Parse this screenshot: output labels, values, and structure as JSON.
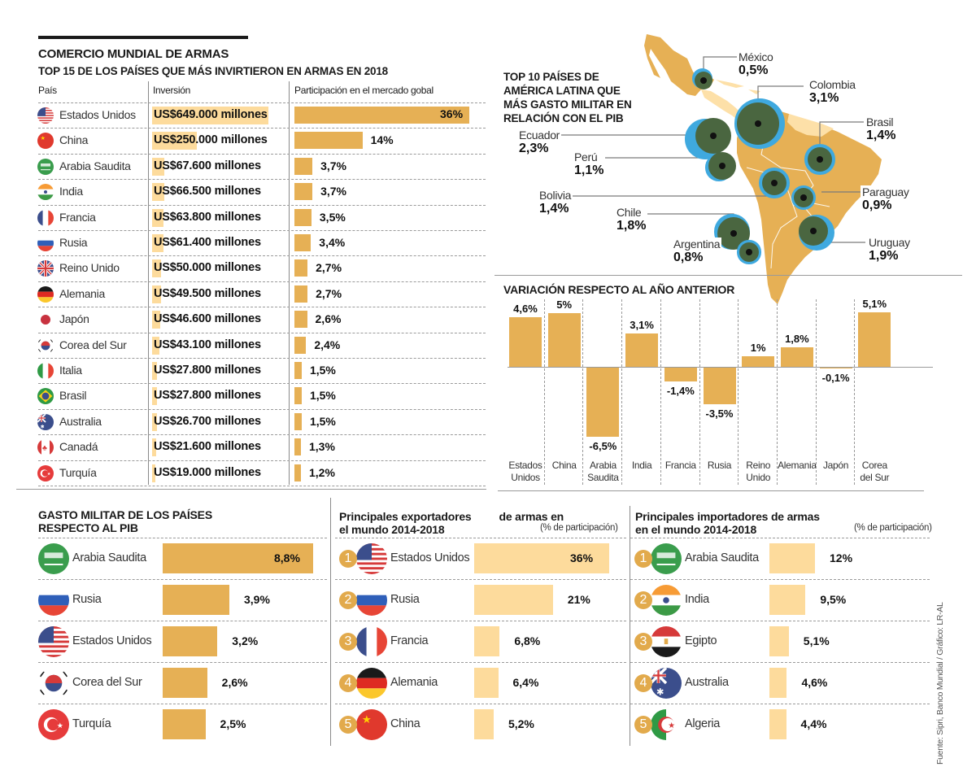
{
  "header": {
    "title": "COMERCIO MUNDIAL DE ARMAS",
    "subtitle": "TOP 15 DE LOS PAÍSES QUE MÁS INVIRTIERON EN ARMAS EN 2018",
    "col_country": "País",
    "col_investment": "Inversión",
    "col_share": "Participación en el mercado gobal"
  },
  "colors": {
    "bar_dark": "#e6b055",
    "bar_light": "#fddb9c",
    "map_land": "#e6b055",
    "map_land_light": "#fde0a8",
    "bubble_blue": "#3fa9df",
    "bubble_green": "#4a6640",
    "rank_badge": "#e2aa4c"
  },
  "top15": [
    {
      "country": "Estados Unidos",
      "flag": "usa-flag",
      "investment": "US$649.000 millones",
      "investment_musd": 649000,
      "share_pct": 36,
      "share_label": "36%"
    },
    {
      "country": "China",
      "flag": "china-flag",
      "investment": "US$250.000 millones",
      "investment_musd": 250000,
      "share_pct": 14,
      "share_label": "14%"
    },
    {
      "country": "Arabia Saudita",
      "flag": "saudi-flag",
      "investment": "US$67.600 millones",
      "investment_musd": 67600,
      "share_pct": 3.7,
      "share_label": "3,7%"
    },
    {
      "country": "India",
      "flag": "india-flag",
      "investment": "US$66.500 millones",
      "investment_musd": 66500,
      "share_pct": 3.7,
      "share_label": "3,7%"
    },
    {
      "country": "Francia",
      "flag": "france-flag",
      "investment": "US$63.800 millones",
      "investment_musd": 63800,
      "share_pct": 3.5,
      "share_label": "3,5%"
    },
    {
      "country": "Rusia",
      "flag": "russia-flag",
      "investment": "US$61.400 millones",
      "investment_musd": 61400,
      "share_pct": 3.4,
      "share_label": "3,4%"
    },
    {
      "country": "Reino Unido",
      "flag": "uk-flag",
      "investment": "US$50.000 millones",
      "investment_musd": 50000,
      "share_pct": 2.7,
      "share_label": "2,7%"
    },
    {
      "country": "Alemania",
      "flag": "germany-flag",
      "investment": "US$49.500 millones",
      "investment_musd": 49500,
      "share_pct": 2.7,
      "share_label": "2,7%"
    },
    {
      "country": "Japón",
      "flag": "japan-flag",
      "investment": "US$46.600 millones",
      "investment_musd": 46600,
      "share_pct": 2.6,
      "share_label": "2,6%"
    },
    {
      "country": "Corea del Sur",
      "flag": "korea-flag",
      "investment": "US$43.100 millones",
      "investment_musd": 43100,
      "share_pct": 2.4,
      "share_label": "2,4%"
    },
    {
      "country": "Italia",
      "flag": "italy-flag",
      "investment": "US$27.800 millones",
      "investment_musd": 27800,
      "share_pct": 1.5,
      "share_label": "1,5%"
    },
    {
      "country": "Brasil",
      "flag": "brazil-flag",
      "investment": "US$27.800 millones",
      "investment_musd": 27800,
      "share_pct": 1.5,
      "share_label": "1,5%"
    },
    {
      "country": "Australia",
      "flag": "australia-flag",
      "investment": "US$26.700 millones",
      "investment_musd": 26700,
      "share_pct": 1.5,
      "share_label": "1,5%"
    },
    {
      "country": "Canadá",
      "flag": "canada-flag",
      "investment": "US$21.600 millones",
      "investment_musd": 21600,
      "share_pct": 1.3,
      "share_label": "1,3%"
    },
    {
      "country": "Turquía",
      "flag": "turkey-flag",
      "investment": "US$19.000 millones",
      "investment_musd": 19000,
      "share_pct": 1.2,
      "share_label": "1,2%"
    }
  ],
  "latam": {
    "title_lines": [
      "TOP 10 PAÍSES DE",
      "AMÉRICA LATINA QUE",
      "MÁS GASTO MILITAR EN",
      "RELACIÓN CON EL PIB"
    ],
    "countries": [
      {
        "name": "México",
        "value": 0.5,
        "label": "0,5%"
      },
      {
        "name": "Colombia",
        "value": 3.1,
        "label": "3,1%"
      },
      {
        "name": "Brasil",
        "value": 1.4,
        "label": "1,4%"
      },
      {
        "name": "Ecuador",
        "value": 2.3,
        "label": "2,3%"
      },
      {
        "name": "Perú",
        "value": 1.1,
        "label": "1,1%"
      },
      {
        "name": "Bolivia",
        "value": 1.4,
        "label": "1,4%"
      },
      {
        "name": "Paraguay",
        "value": 0.9,
        "label": "0,9%"
      },
      {
        "name": "Chile",
        "value": 1.8,
        "label": "1,8%"
      },
      {
        "name": "Argentina",
        "value": 0.8,
        "label": "0,8%"
      },
      {
        "name": "Uruguay",
        "value": 1.9,
        "label": "1,9%"
      }
    ]
  },
  "variation": {
    "title": "VARIACIÓN RESPECTO AL AÑO ANTERIOR",
    "items": [
      {
        "cat": [
          "Estados",
          "Unidos"
        ],
        "value": 4.6,
        "label": "4,6%"
      },
      {
        "cat": [
          "China"
        ],
        "value": 5.0,
        "label": "5%"
      },
      {
        "cat": [
          "Arabia",
          "Saudita"
        ],
        "value": -6.5,
        "label": "-6,5%"
      },
      {
        "cat": [
          "India"
        ],
        "value": 3.1,
        "label": "3,1%"
      },
      {
        "cat": [
          "Francia"
        ],
        "value": -1.4,
        "label": "-1,4%"
      },
      {
        "cat": [
          "Rusia"
        ],
        "value": -3.5,
        "label": "-3,5%"
      },
      {
        "cat": [
          "Reino",
          "Unido"
        ],
        "value": 1.0,
        "label": "1%"
      },
      {
        "cat": [
          "Alemania"
        ],
        "value": 1.8,
        "label": "1,8%"
      },
      {
        "cat": [
          "Japón"
        ],
        "value": -0.1,
        "label": "-0,1%"
      },
      {
        "cat": [
          "Corea",
          "del Sur"
        ],
        "value": 5.1,
        "label": "5,1%"
      }
    ]
  },
  "gdp": {
    "title_lines": [
      "GASTO MILITAR DE LOS PAÍSES",
      "RESPECTO AL PIB"
    ],
    "items": [
      {
        "country": "Arabia Saudita",
        "flag": "saudi-flag",
        "value": 8.8,
        "label": "8,8%"
      },
      {
        "country": "Rusia",
        "flag": "russia-flag",
        "value": 3.9,
        "label": "3,9%"
      },
      {
        "country": "Estados Unidos",
        "flag": "usa-flag",
        "value": 3.2,
        "label": "3,2%"
      },
      {
        "country": "Corea del Sur",
        "flag": "korea-flag",
        "value": 2.6,
        "label": "2,6%"
      },
      {
        "country": "Turquía",
        "flag": "turkey-flag",
        "value": 2.5,
        "label": "2,5%"
      }
    ]
  },
  "exporters": {
    "title_line1a": "Principales exportadores",
    "title_line1b": "de armas en",
    "title_line2": "el mundo 2014-2018",
    "note": "(% de participación)",
    "items": [
      {
        "rank": "1",
        "country": "Estados Unidos",
        "flag": "usa-flag",
        "value": 36,
        "label": "36%"
      },
      {
        "rank": "2",
        "country": "Rusia",
        "flag": "russia-flag",
        "value": 21,
        "label": "21%"
      },
      {
        "rank": "3",
        "country": "Francia",
        "flag": "france-flag",
        "value": 6.8,
        "label": "6,8%"
      },
      {
        "rank": "4",
        "country": "Alemania",
        "flag": "germany-flag",
        "value": 6.4,
        "label": "6,4%"
      },
      {
        "rank": "5",
        "country": "China",
        "flag": "china-flag",
        "value": 5.2,
        "label": "5,2%"
      }
    ]
  },
  "importers": {
    "title_line1": "Principales importadores de armas",
    "title_line2": "en el mundo 2014-2018",
    "note": "(% de participación)",
    "items": [
      {
        "rank": "1",
        "country": "Arabia Saudita",
        "flag": "saudi-flag",
        "value": 12,
        "label": "12%"
      },
      {
        "rank": "2",
        "country": "India",
        "flag": "india-flag",
        "value": 9.5,
        "label": "9,5%"
      },
      {
        "rank": "3",
        "country": "Egipto",
        "flag": "egypt-flag",
        "value": 5.1,
        "label": "5,1%"
      },
      {
        "rank": "4",
        "country": "Australia",
        "flag": "australia-flag",
        "value": 4.6,
        "label": "4,6%"
      },
      {
        "rank": "5",
        "country": "Algeria",
        "flag": "algeria-flag",
        "value": 4.4,
        "label": "4,4%"
      }
    ]
  },
  "source": "Fuente: Sipri, Banco Mundial / Gráfico: LR-AL",
  "chart_data": [
    {
      "type": "bar",
      "title": "TOP 15 DE LOS PAÍSES QUE MÁS INVIRTIERON EN ARMAS EN 2018",
      "categories": [
        "Estados Unidos",
        "China",
        "Arabia Saudita",
        "India",
        "Francia",
        "Rusia",
        "Reino Unido",
        "Alemania",
        "Japón",
        "Corea del Sur",
        "Italia",
        "Brasil",
        "Australia",
        "Canadá",
        "Turquía"
      ],
      "series": [
        {
          "name": "Inversión (US$ millones)",
          "values": [
            649000,
            250000,
            67600,
            66500,
            63800,
            61400,
            50000,
            49500,
            46600,
            43100,
            27800,
            27800,
            26700,
            21600,
            19000
          ]
        },
        {
          "name": "Participación en el mercado gobal (%)",
          "values": [
            36,
            14,
            3.7,
            3.7,
            3.5,
            3.4,
            2.7,
            2.7,
            2.6,
            2.4,
            1.5,
            1.5,
            1.5,
            1.3,
            1.2
          ]
        }
      ],
      "orientation": "horizontal"
    },
    {
      "type": "bar",
      "title": "VARIACIÓN RESPECTO AL AÑO ANTERIOR",
      "categories": [
        "Estados Unidos",
        "China",
        "Arabia Saudita",
        "India",
        "Francia",
        "Rusia",
        "Reino Unido",
        "Alemania",
        "Japón",
        "Corea del Sur"
      ],
      "values": [
        4.6,
        5,
        -6.5,
        3.1,
        -1.4,
        -3.5,
        1,
        1.8,
        -0.1,
        5.1
      ],
      "ylim": [
        -6.5,
        5.1
      ]
    },
    {
      "type": "bar",
      "title": "GASTO MILITAR DE LOS PAÍSES RESPECTO AL PIB",
      "categories": [
        "Arabia Saudita",
        "Rusia",
        "Estados Unidos",
        "Corea del Sur",
        "Turquía"
      ],
      "values": [
        8.8,
        3.9,
        3.2,
        2.6,
        2.5
      ],
      "orientation": "horizontal"
    },
    {
      "type": "bar",
      "title": "Principales exportadores de armas en el mundo 2014-2018 (% de participación)",
      "categories": [
        "Estados Unidos",
        "Rusia",
        "Francia",
        "Alemania",
        "China"
      ],
      "values": [
        36,
        21,
        6.8,
        6.4,
        5.2
      ],
      "orientation": "horizontal"
    },
    {
      "type": "bar",
      "title": "Principales importadores de armas en el mundo 2014-2018 (% de participación)",
      "categories": [
        "Arabia Saudita",
        "India",
        "Egipto",
        "Australia",
        "Algeria"
      ],
      "values": [
        12,
        9.5,
        5.1,
        4.6,
        4.4
      ],
      "orientation": "horizontal"
    },
    {
      "type": "scatter",
      "title": "TOP 10 PAÍSES DE AMÉRICA LATINA QUE MÁS GASTO MILITAR EN RELACIÓN CON EL PIB",
      "categories": [
        "México",
        "Colombia",
        "Brasil",
        "Ecuador",
        "Perú",
        "Bolivia",
        "Paraguay",
        "Chile",
        "Argentina",
        "Uruguay"
      ],
      "values": [
        0.5,
        3.1,
        1.4,
        2.3,
        1.1,
        1.4,
        0.9,
        1.8,
        0.8,
        1.9
      ]
    }
  ]
}
